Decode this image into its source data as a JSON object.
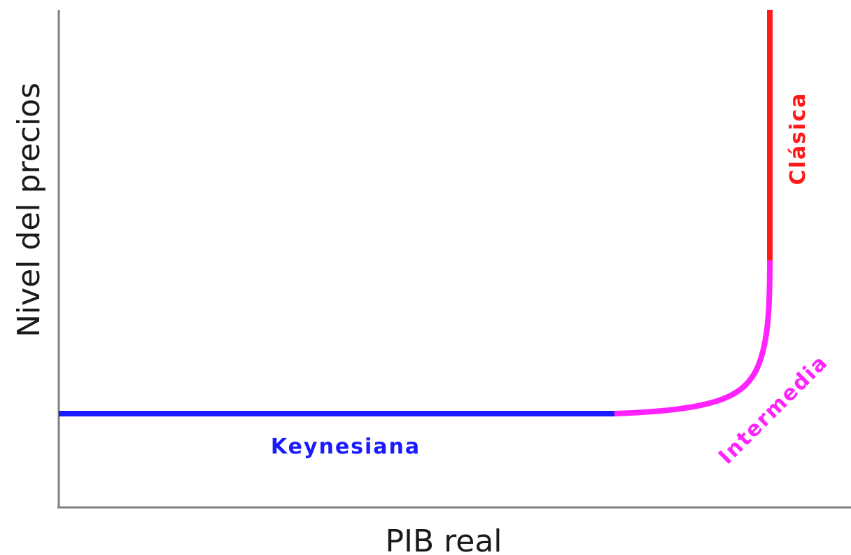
{
  "chart_data": {
    "type": "line",
    "title": "",
    "xlabel": "PIB real",
    "ylabel": "Nivel del precios",
    "grid": false,
    "legend": "none",
    "series": [
      {
        "name": "Keynesiana",
        "color": "#1a1aff",
        "segment": "horizontal"
      },
      {
        "name": "Intermedia",
        "color": "#ff22ff",
        "segment": "curve"
      },
      {
        "name": "Clásica",
        "color": "#ff1a1a",
        "segment": "vertical"
      }
    ]
  }
}
